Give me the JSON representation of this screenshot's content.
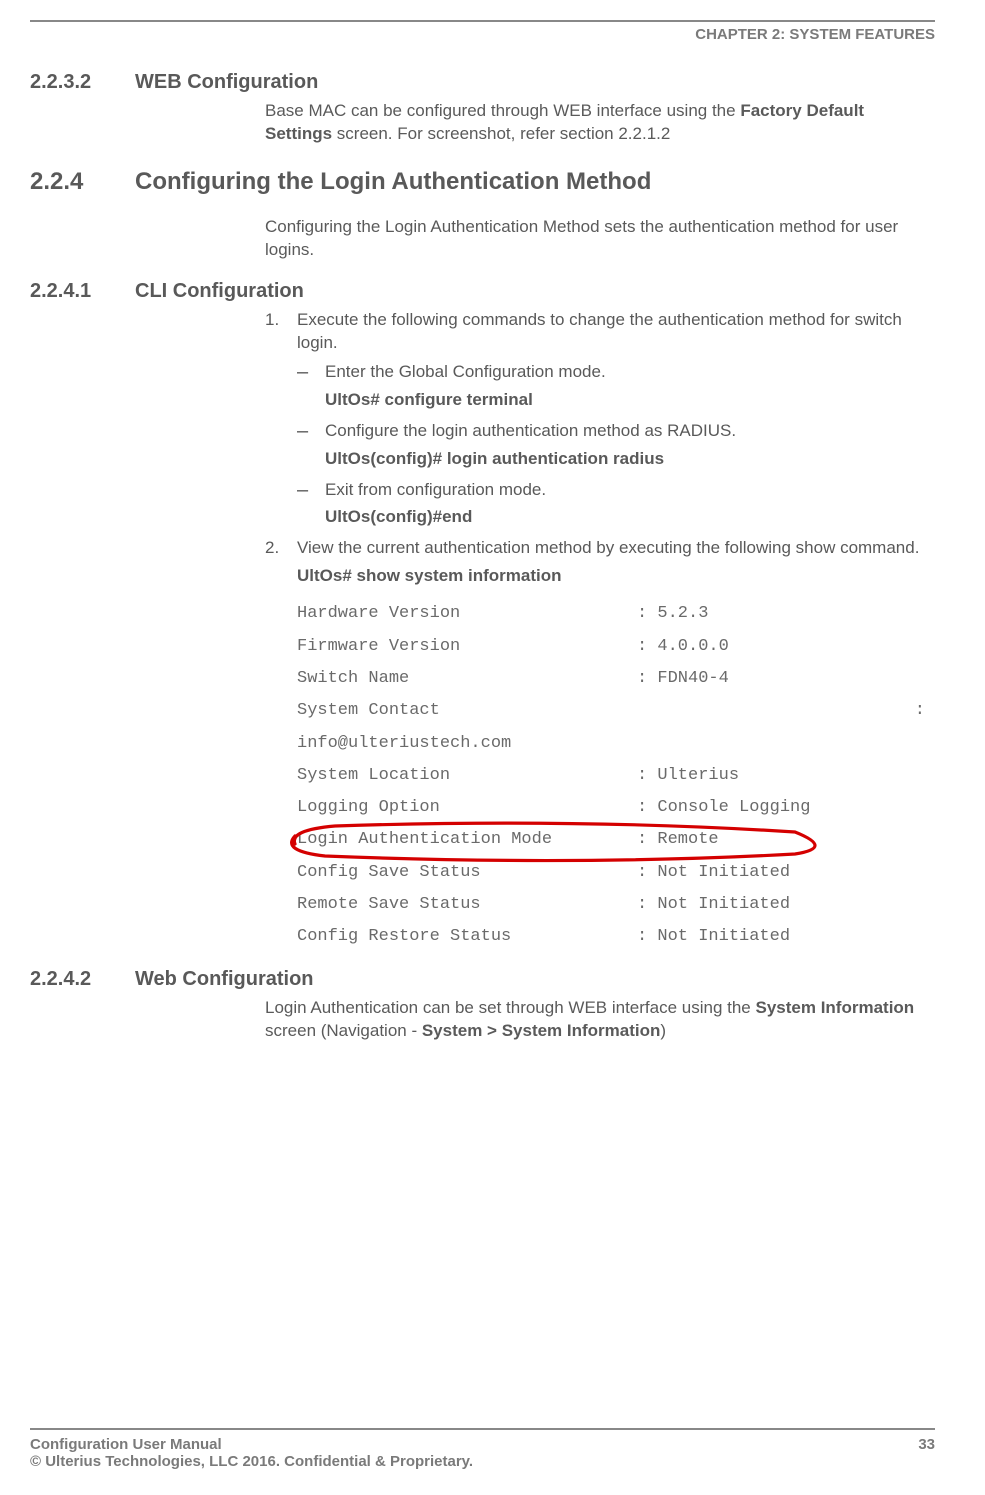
{
  "header": {
    "chapter": "CHAPTER 2: SYSTEM FEATURES"
  },
  "s_2232": {
    "num": "2.2.3.2",
    "title": "WEB Configuration",
    "body_pre": "Base MAC can be configured through WEB interface using the ",
    "body_bold": "Factory Default Settings",
    "body_post": " screen. For screenshot, refer section 2.2.1.2"
  },
  "s_224": {
    "num": "2.2.4",
    "title": "Configuring the Login Authentication Method",
    "body": "Configuring the Login Authentication Method sets the authentication method for user logins."
  },
  "s_2241": {
    "num": "2.2.4.1",
    "title": "CLI Configuration",
    "step1": "Execute the following commands to change the authentication method for switch login.",
    "d1": "Enter the Global Configuration mode.",
    "cmd1": "UltOs# configure terminal",
    "d2": "Configure the login authentication method as RADIUS.",
    "cmd2": "UltOs(config)# login authentication radius",
    "d3": "Exit from configuration mode.",
    "cmd3": "UltOs(config)#end",
    "step2": "View the current authentication method by executing the following show command.",
    "showcmd": "UltOs# show system information"
  },
  "sysinfo": {
    "rows": [
      {
        "label": "Hardware Version",
        "value": ": 5.2.3"
      },
      {
        "label": "Firmware Version",
        "value": ": 4.0.0.0"
      },
      {
        "label": "Switch Name",
        "value": ": FDN40-4"
      }
    ],
    "contact_label": "System  Contact",
    "contact_colon": ":",
    "contact_value": "info@ulteriustech.com",
    "rows2": [
      {
        "label": "System Location",
        "value": ": Ulterius"
      },
      {
        "label": "Logging Option",
        "value": ": Console Logging"
      },
      {
        "label": "Login Authentication Mode",
        "value": ": Remote",
        "highlight": true
      },
      {
        "label": "Config Save Status",
        "value": ": Not Initiated"
      },
      {
        "label": "Remote Save Status",
        "value": ": Not Initiated"
      },
      {
        "label": "Config Restore Status",
        "value": ": Not Initiated"
      }
    ],
    "highlight_color": "#d40000"
  },
  "s_2242": {
    "num": "2.2.4.2",
    "title": "Web Configuration",
    "body_pre": "Login Authentication can be set through WEB interface using the ",
    "body_b1": "System Information",
    "body_mid": " screen (Navigation - ",
    "body_b2": "System > System Information",
    "body_post": ")"
  },
  "footer": {
    "left1": "Configuration User Manual",
    "left2": "© Ulterius Technologies, LLC 2016. Confidential & Proprietary.",
    "page": "33"
  }
}
